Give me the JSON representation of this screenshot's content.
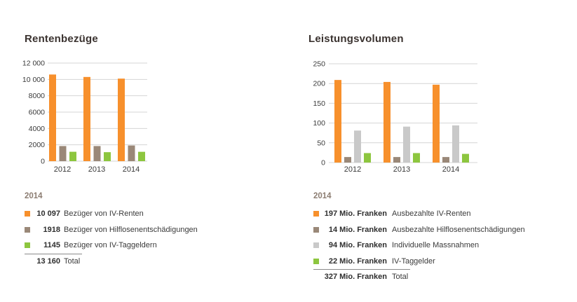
{
  "colors": {
    "orange": "#f7902c",
    "brown": "#9a8878",
    "lightgray": "#c9c9c9",
    "green": "#8dc63f"
  },
  "left": {
    "title": "Rentenbezüge",
    "year": "2014",
    "legend": [
      {
        "value": "10 097",
        "label": "Bezüger von IV-Renten",
        "color": "orange"
      },
      {
        "value": "1918",
        "label": "Bezüger von Hilflosenentschädigungen",
        "color": "brown"
      },
      {
        "value": "1145",
        "label": "Bezüger von IV-Taggeldern",
        "color": "green"
      }
    ],
    "total": {
      "value": "13 160",
      "label": "Total"
    }
  },
  "right": {
    "title": "Leistungsvolumen",
    "year": "2014",
    "legend": [
      {
        "value": "197 Mio. Franken",
        "label": "Ausbezahlte IV-Renten",
        "color": "orange"
      },
      {
        "value": "14 Mio. Franken",
        "label": "Ausbezahlte Hilflosenentschädigungen",
        "color": "brown"
      },
      {
        "value": "94 Mio. Franken",
        "label": "Individuelle Massnahmen",
        "color": "lightgray"
      },
      {
        "value": "22 Mio. Franken",
        "label": "IV-Taggelder",
        "color": "green"
      }
    ],
    "total": {
      "value": "327 Mio. Franken",
      "label": "Total"
    }
  },
  "chart_data": [
    {
      "type": "bar",
      "title": "Rentenbezüge",
      "categories": [
        "2012",
        "2013",
        "2014"
      ],
      "ylim": [
        0,
        12000
      ],
      "yticks": [
        0,
        2000,
        4000,
        6000,
        8000,
        10000,
        12000
      ],
      "ytick_labels": [
        "0",
        "2000",
        "4000",
        "6000",
        "8000",
        "10 000",
        "12 000"
      ],
      "grid": true,
      "series": [
        {
          "name": "Bezüger von IV-Renten",
          "color": "orange",
          "values": [
            10600,
            10300,
            10097
          ]
        },
        {
          "name": "Bezüger von Hilflosenentschädigungen",
          "color": "brown",
          "values": [
            1850,
            1850,
            1918
          ]
        },
        {
          "name": "Bezüger von IV-Taggeldern",
          "color": "green",
          "values": [
            1150,
            1100,
            1145
          ]
        }
      ]
    },
    {
      "type": "bar",
      "title": "Leistungsvolumen",
      "categories": [
        "2012",
        "2013",
        "2014"
      ],
      "ylim": [
        0,
        250
      ],
      "yticks": [
        0,
        50,
        100,
        150,
        200,
        250
      ],
      "ytick_labels": [
        "0",
        "50",
        "100",
        "150",
        "200",
        "250"
      ],
      "grid": true,
      "series": [
        {
          "name": "Ausbezahlte IV-Renten",
          "color": "orange",
          "values": [
            209,
            204,
            197
          ]
        },
        {
          "name": "Ausbezahlte Hilflosenentschädigungen",
          "color": "brown",
          "values": [
            14,
            14,
            14
          ]
        },
        {
          "name": "Individuelle Massnahmen",
          "color": "lightgray",
          "values": [
            81,
            91,
            94
          ]
        },
        {
          "name": "IV-Taggelder",
          "color": "green",
          "values": [
            24,
            24,
            22
          ]
        }
      ]
    }
  ]
}
